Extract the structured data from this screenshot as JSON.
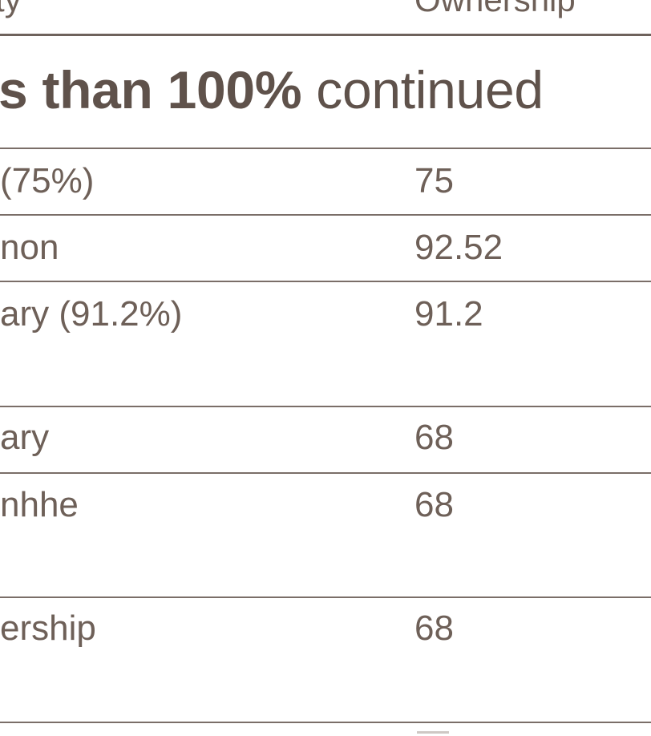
{
  "header": {
    "entity_col": "ty",
    "ownership_col": "Ownership"
  },
  "section": {
    "title_bold": "s than 100%",
    "title_rest": " continued"
  },
  "rows": [
    {
      "entity": " (75%)",
      "ownership": "75"
    },
    {
      "entity": "non",
      "ownership": "92.52"
    },
    {
      "entity": "ary (91.2%)",
      "ownership": "91.2"
    },
    {
      "entity": "ary",
      "ownership": "68"
    },
    {
      "entity": "nhhe",
      "ownership": "68"
    },
    {
      "entity": "ership",
      "ownership": "68"
    }
  ],
  "colors": {
    "text": "#6e6058",
    "rule": "#7a6e68"
  }
}
